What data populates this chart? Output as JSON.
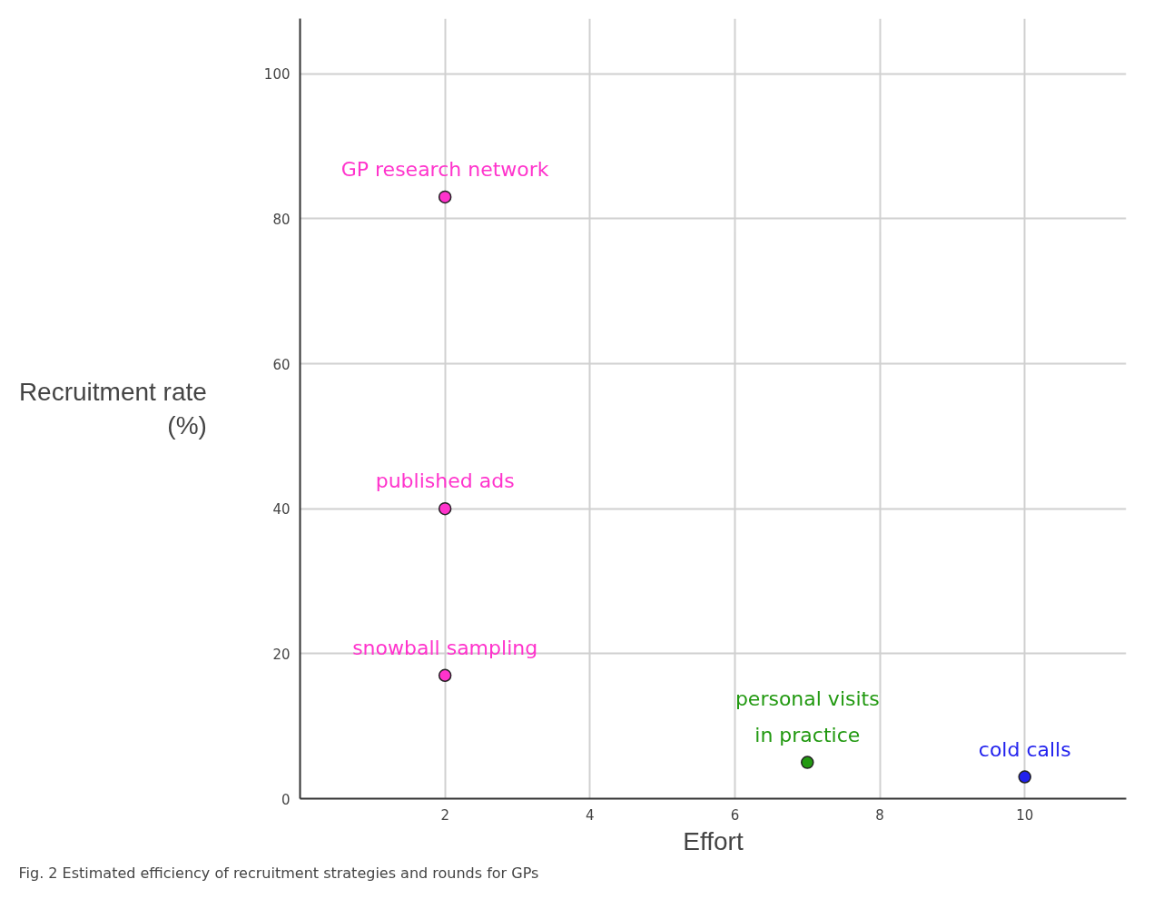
{
  "chart_data": {
    "type": "scatter",
    "xlabel": "Effort",
    "ylabel": "Recruitment rate\n(%)",
    "annotations": [
      "Fig. 2 Estimated efficiency of recruitment strategies and rounds for GPs"
    ],
    "xlim": [
      0,
      11.4
    ],
    "ylim": [
      0,
      107.6
    ],
    "xticks": [
      2,
      4,
      6,
      8,
      10
    ],
    "yticks": [
      0,
      20,
      40,
      60,
      80,
      100
    ],
    "grid": true,
    "marker": "circle",
    "series": [
      {
        "name": "GP research network",
        "color": "#ff33cc",
        "x": [
          2
        ],
        "values": [
          83
        ]
      },
      {
        "name": "published ads",
        "color": "#ff33cc",
        "x": [
          2
        ],
        "values": [
          40
        ]
      },
      {
        "name": "snowball sampling",
        "color": "#ff33cc",
        "x": [
          2
        ],
        "values": [
          17
        ]
      },
      {
        "name": "personal visits\nin practice",
        "color": "#229911",
        "x": [
          7
        ],
        "values": [
          5
        ]
      },
      {
        "name": "cold calls",
        "color": "#2222ee",
        "x": [
          10
        ],
        "values": [
          3
        ]
      }
    ]
  }
}
